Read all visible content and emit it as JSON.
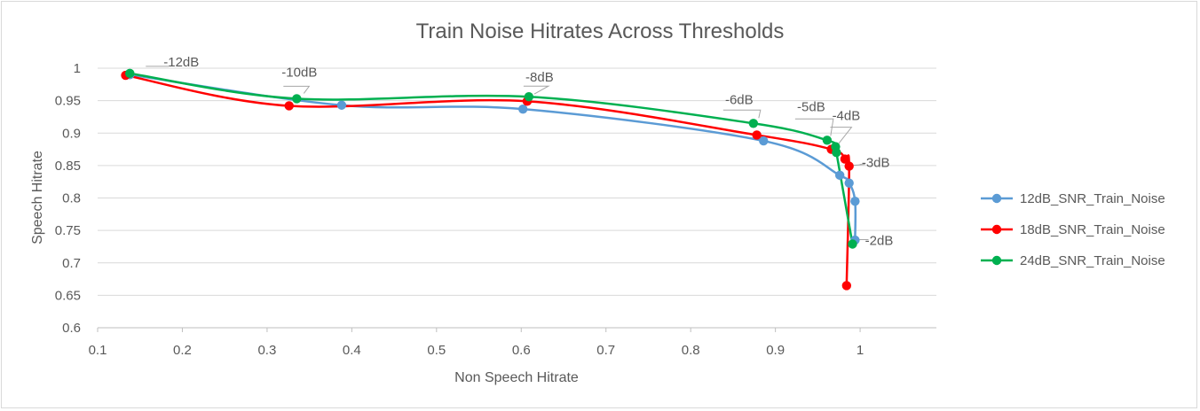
{
  "chart_data": {
    "type": "scatter",
    "title": "Train Noise Hitrates Across Thresholds",
    "xlabel": "Non Speech Hitrate",
    "ylabel": "Speech Hitrate",
    "xlim": [
      0.1,
      1.09
    ],
    "ylim": [
      0.6,
      1.0
    ],
    "xticks": [
      0.1,
      0.2,
      0.3,
      0.4,
      0.5,
      0.6,
      0.7,
      0.8,
      0.9,
      1.0
    ],
    "xtick_labels": [
      "0.1",
      "0.2",
      "0.3",
      "0.4",
      "0.5",
      "0.6",
      "0.7",
      "0.8",
      "0.9",
      "1"
    ],
    "yticks": [
      0.6,
      0.65,
      0.7,
      0.75,
      0.8,
      0.85,
      0.9,
      0.95,
      1.0
    ],
    "ytick_labels": [
      "0.6",
      "0.65",
      "0.7",
      "0.75",
      "0.8",
      "0.85",
      "0.9",
      "0.95",
      "1"
    ],
    "grid": "horizontal",
    "legend_position": "right",
    "series": [
      {
        "name": "12dB_SNR_Train_Noise",
        "color": "#5b9bd5",
        "x": [
          0.138,
          0.388,
          0.602,
          0.886,
          0.976,
          0.987,
          0.994,
          0.994
        ],
        "y": [
          0.99,
          0.943,
          0.937,
          0.888,
          0.835,
          0.823,
          0.795,
          0.735
        ]
      },
      {
        "name": "18dB_SNR_Train_Noise",
        "color": "#ff0000",
        "x": [
          0.133,
          0.326,
          0.607,
          0.878,
          0.966,
          0.982,
          0.987,
          0.984
        ],
        "y": [
          0.989,
          0.942,
          0.949,
          0.897,
          0.875,
          0.86,
          0.849,
          0.665
        ]
      },
      {
        "name": "24dB_SNR_Train_Noise",
        "color": "#00b050",
        "x": [
          0.138,
          0.335,
          0.609,
          0.874,
          0.961,
          0.971,
          0.972,
          0.991
        ],
        "y": [
          0.992,
          0.953,
          0.956,
          0.915,
          0.889,
          0.879,
          0.87,
          0.729
        ]
      }
    ],
    "annotations": [
      {
        "text": "-12dB",
        "x": 0.138,
        "y": 0.992
      },
      {
        "text": "-10dB",
        "x": 0.335,
        "y": 0.953
      },
      {
        "text": "-8dB",
        "x": 0.609,
        "y": 0.956
      },
      {
        "text": "-6dB",
        "x": 0.874,
        "y": 0.915
      },
      {
        "text": "-5dB",
        "x": 0.961,
        "y": 0.889
      },
      {
        "text": "-4dB",
        "x": 0.971,
        "y": 0.879
      },
      {
        "text": "-3dB",
        "x": 0.987,
        "y": 0.849
      },
      {
        "text": "-2dB",
        "x": 0.991,
        "y": 0.729
      }
    ]
  }
}
